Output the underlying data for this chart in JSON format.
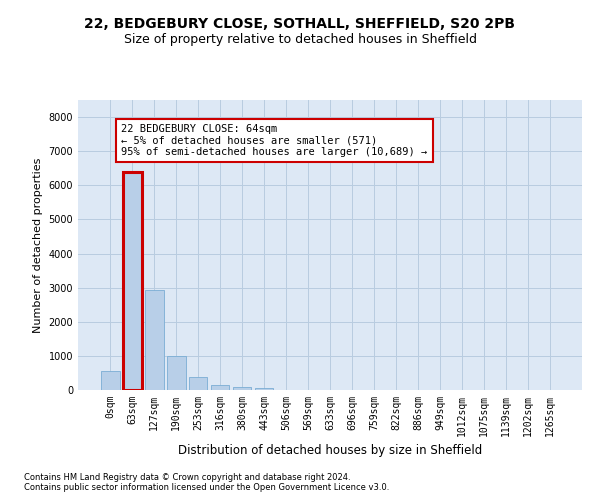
{
  "title_line1": "22, BEDGEBURY CLOSE, SOTHALL, SHEFFIELD, S20 2PB",
  "title_line2": "Size of property relative to detached houses in Sheffield",
  "xlabel": "Distribution of detached houses by size in Sheffield",
  "ylabel": "Number of detached properties",
  "categories": [
    "0sqm",
    "63sqm",
    "127sqm",
    "190sqm",
    "253sqm",
    "316sqm",
    "380sqm",
    "443sqm",
    "506sqm",
    "569sqm",
    "633sqm",
    "696sqm",
    "759sqm",
    "822sqm",
    "886sqm",
    "949sqm",
    "1012sqm",
    "1075sqm",
    "1139sqm",
    "1202sqm",
    "1265sqm"
  ],
  "values": [
    560,
    6400,
    2920,
    1000,
    370,
    160,
    100,
    60,
    0,
    0,
    0,
    0,
    0,
    0,
    0,
    0,
    0,
    0,
    0,
    0,
    0
  ],
  "bar_color": "#b8cfe8",
  "bar_edge_color": "#7aadd4",
  "highlight_bar_index": 1,
  "highlight_color": "#cc0000",
  "annotation_text": "22 BEDGEBURY CLOSE: 64sqm\n← 5% of detached houses are smaller (571)\n95% of semi-detached houses are larger (10,689) →",
  "annotation_box_color": "#ffffff",
  "annotation_box_edge_color": "#cc0000",
  "ylim": [
    0,
    8500
  ],
  "yticks": [
    0,
    1000,
    2000,
    3000,
    4000,
    5000,
    6000,
    7000,
    8000
  ],
  "footnote_line1": "Contains HM Land Registry data © Crown copyright and database right 2024.",
  "footnote_line2": "Contains public sector information licensed under the Open Government Licence v3.0.",
  "bg_color": "#ffffff",
  "plot_bg_color": "#dde8f5",
  "grid_color": "#b8cce0",
  "title_fontsize": 10,
  "subtitle_fontsize": 9,
  "tick_fontsize": 7,
  "ylabel_fontsize": 8,
  "xlabel_fontsize": 8.5,
  "annotation_fontsize": 7.5,
  "footnote_fontsize": 6
}
